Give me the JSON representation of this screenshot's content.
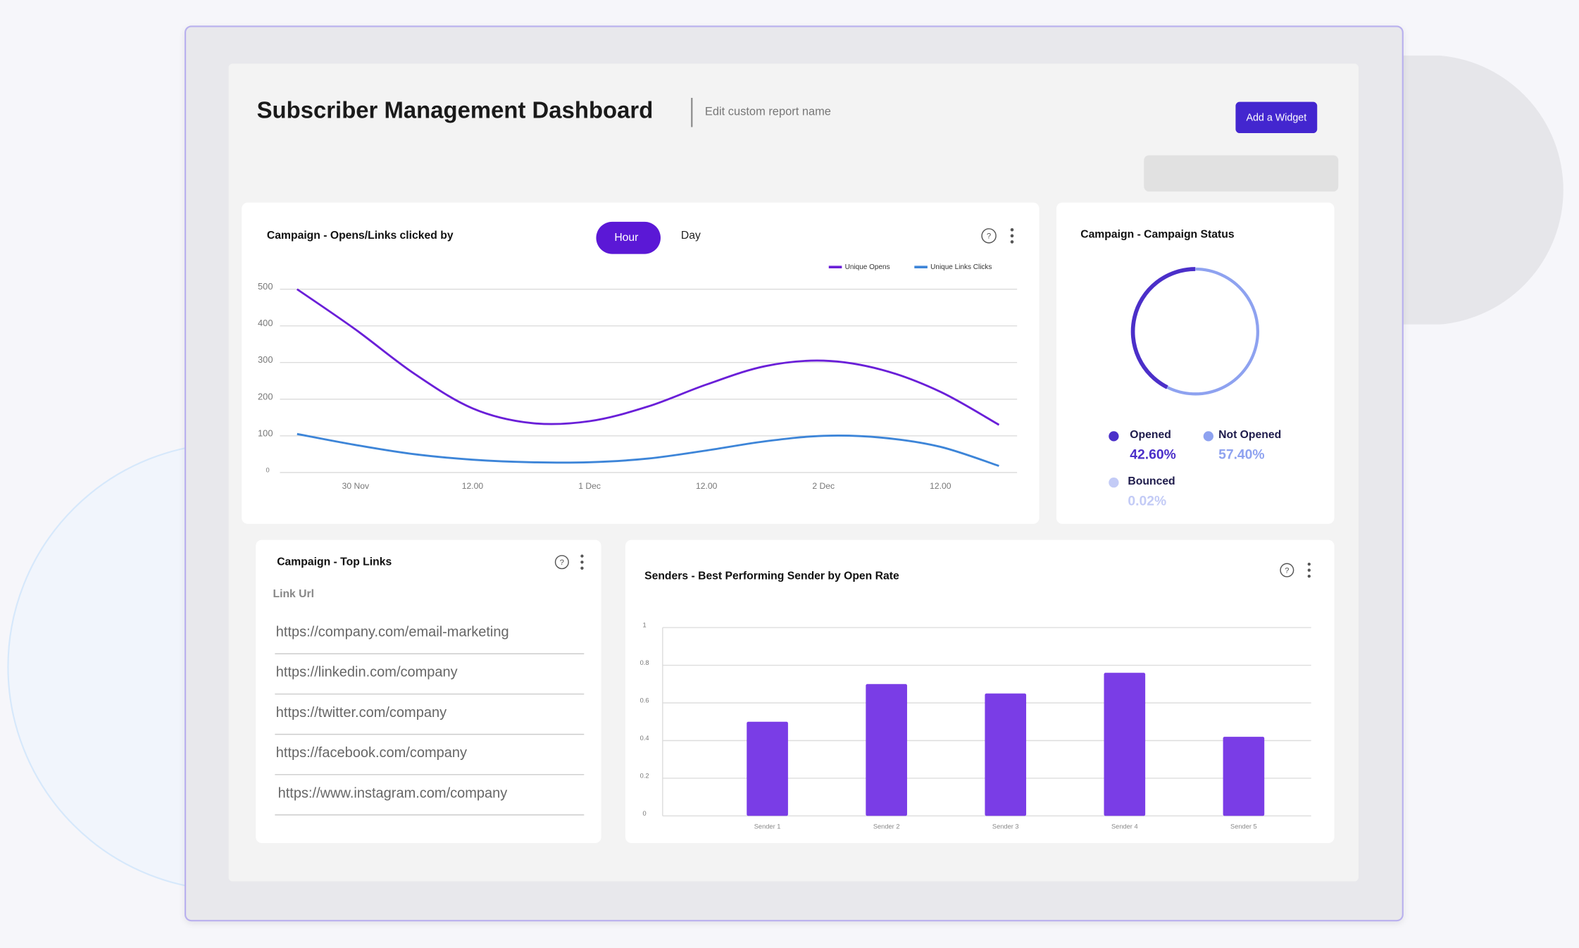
{
  "header": {
    "title": "Subscriber Management Dashboard",
    "subtitle": "Edit custom report name",
    "button": "Add a Widget"
  },
  "chart_data": [
    {
      "type": "line",
      "title": "Campaign - Opens/Links clicked by",
      "toggles": [
        "Hour",
        "Day"
      ],
      "categories": [
        null,
        "30 Nov",
        null,
        "12.00",
        null,
        "1 Dec",
        null,
        "12.00",
        null,
        "2 Dec",
        null,
        "12.00",
        null
      ],
      "series": [
        {
          "name": "Unique Opens",
          "color": "#6a1fd8",
          "values": [
            500,
            390,
            270,
            175,
            135,
            140,
            180,
            240,
            290,
            305,
            280,
            220,
            130
          ]
        },
        {
          "name": "Unique Links Clicks",
          "color": "#3d85d8",
          "values": [
            105,
            75,
            50,
            35,
            28,
            28,
            38,
            60,
            85,
            100,
            95,
            70,
            18
          ]
        }
      ],
      "ylim": [
        0,
        500
      ],
      "yticks": [
        0,
        100,
        200,
        300,
        400,
        500
      ],
      "grid": true
    },
    {
      "type": "pie",
      "title": "Campaign - Campaign Status",
      "categories": [
        "Opened",
        "Not Opened",
        "Bounced"
      ],
      "values": [
        42.6,
        57.4,
        0.02
      ],
      "value_labels": [
        "42.60%",
        "57.40%",
        "0.02%"
      ],
      "colors": [
        "#4b2fc9",
        "#8ea2f0",
        "#c3cbf6"
      ]
    },
    {
      "type": "bar",
      "title": "Senders - Best Performing Sender by Open Rate",
      "categories": [
        "Sender 1",
        "Sender 2",
        "Sender 3",
        "Sender 4",
        "Sender 5"
      ],
      "values": [
        0.5,
        0.7,
        0.65,
        0.76,
        0.42
      ],
      "color": "#7a3de6",
      "ylim": [
        0,
        1
      ],
      "yticks": [
        0,
        0.2,
        0.4,
        0.6,
        0.8,
        1
      ],
      "grid": true
    }
  ],
  "top_links": {
    "title": "Campaign - Top Links",
    "column": "Link Url",
    "rows": [
      "https://company.com/email-marketing",
      "https://linkedin.com/company",
      "https://twitter.com/company",
      "https://facebook.com/company",
      "https://www.instagram.com/company"
    ]
  }
}
